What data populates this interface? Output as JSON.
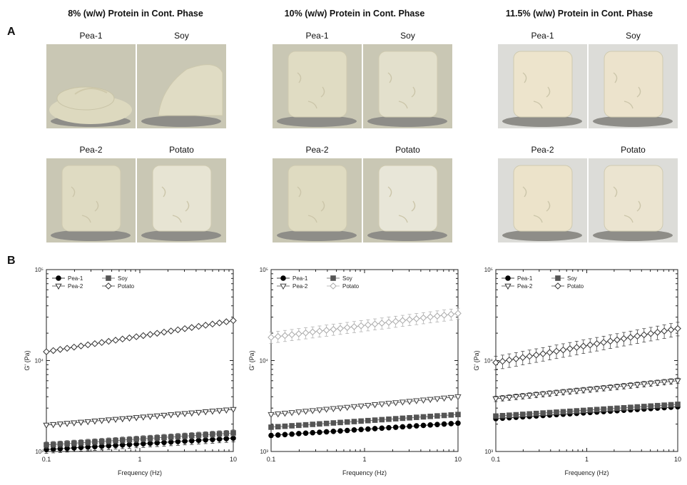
{
  "panel_labels": {
    "a": "A",
    "b": "B"
  },
  "columns": [
    {
      "title": "8% (w/w) Protein in Cont. Phase"
    },
    {
      "title": "10% (w/w) Protein in Cont. Phase"
    },
    {
      "title": "11.5% (w/w) Protein in Cont. Phase"
    }
  ],
  "photos": [
    [
      {
        "label": "Pea-1",
        "tone": "#ddd9bf",
        "shape": "slump"
      },
      {
        "label": "Soy",
        "tone": "#e0dcc4",
        "shape": "lean"
      },
      {
        "label": "Pea-2",
        "tone": "#dfdbc2",
        "shape": "column"
      },
      {
        "label": "Potato",
        "tone": "#e7e4d3",
        "shape": "column"
      }
    ],
    [
      {
        "label": "Pea-1",
        "tone": "#e0dcc3",
        "shape": "column"
      },
      {
        "label": "Soy",
        "tone": "#e3e0cc",
        "shape": "column"
      },
      {
        "label": "Pea-2",
        "tone": "#dfdbc1",
        "shape": "column"
      },
      {
        "label": "Potato",
        "tone": "#e8e6d8",
        "shape": "column"
      }
    ],
    [
      {
        "label": "Pea-1",
        "tone": "#ede4cc",
        "shape": "column"
      },
      {
        "label": "Soy",
        "tone": "#ece3cc",
        "shape": "column"
      },
      {
        "label": "Pea-2",
        "tone": "#ece3ca",
        "shape": "column"
      },
      {
        "label": "Potato",
        "tone": "#ebe4d0",
        "shape": "column"
      }
    ]
  ],
  "chart_data": [
    {
      "type": "line",
      "title": "",
      "xlabel": "Frequency (Hz)",
      "ylabel": "G' (Pa)",
      "xscale": "log",
      "yscale": "log",
      "xlim": [
        0.1,
        10
      ],
      "ylim": [
        1000,
        100000
      ],
      "x_tick_labels": [
        "0.1",
        "1",
        "10"
      ],
      "y_tick_labels": [
        "10³",
        "10⁴",
        "10⁵"
      ],
      "legend": "top-left",
      "series": [
        {
          "name": "Pea-1",
          "marker": "circle-filled",
          "color": "#000000",
          "start": 1050,
          "end": 1400,
          "err": 0.09
        },
        {
          "name": "Soy",
          "marker": "square-filled",
          "color": "#555555",
          "start": 1180,
          "end": 1600,
          "err": 0.08
        },
        {
          "name": "Pea-2",
          "marker": "triangle-down-open",
          "color": "#333333",
          "start": 1950,
          "end": 2900,
          "err": 0.02
        },
        {
          "name": "Potato",
          "marker": "diamond-open",
          "color": "#333333",
          "start": 12500,
          "end": 27500,
          "err": 0.04
        }
      ]
    },
    {
      "type": "line",
      "title": "",
      "xlabel": "Frequency (Hz)",
      "ylabel": "G' (Pa)",
      "xscale": "log",
      "yscale": "log",
      "xlim": [
        0.1,
        10
      ],
      "ylim": [
        1000,
        100000
      ],
      "x_tick_labels": [
        "0.1",
        "1",
        "10"
      ],
      "y_tick_labels": [
        "10³",
        "10⁴",
        "10⁵"
      ],
      "legend": "top-left",
      "series": [
        {
          "name": "Pea-1",
          "marker": "circle-filled",
          "color": "#000000",
          "start": 1500,
          "end": 2050,
          "err": 0.03
        },
        {
          "name": "Soy",
          "marker": "square-filled",
          "color": "#555555",
          "start": 1850,
          "end": 2550,
          "err": 0.03
        },
        {
          "name": "Pea-2",
          "marker": "triangle-down-open",
          "color": "#444444",
          "start": 2550,
          "end": 4000,
          "err": 0.03
        },
        {
          "name": "Potato",
          "marker": "diamond-open",
          "color": "#aaaaaa",
          "start": 18000,
          "end": 33000,
          "err": 0.14
        }
      ]
    },
    {
      "type": "line",
      "title": "",
      "xlabel": "Frequency (Hz)",
      "ylabel": "G' (Pa)",
      "xscale": "log",
      "yscale": "log",
      "xlim": [
        0.1,
        10
      ],
      "ylim": [
        1000,
        100000
      ],
      "x_tick_labels": [
        "0.1",
        "1",
        "10"
      ],
      "y_tick_labels": [
        "10³",
        "10⁴",
        "10⁵"
      ],
      "legend": "top-left",
      "series": [
        {
          "name": "Pea-1",
          "marker": "circle-filled",
          "color": "#000000",
          "start": 2300,
          "end": 3100,
          "err": 0.04
        },
        {
          "name": "Soy",
          "marker": "square-filled",
          "color": "#555555",
          "start": 2450,
          "end": 3300,
          "err": 0.05
        },
        {
          "name": "Pea-2",
          "marker": "triangle-down-open",
          "color": "#333333",
          "start": 3800,
          "end": 6000,
          "err": 0.07
        },
        {
          "name": "Potato",
          "marker": "diamond-open",
          "color": "#333333",
          "start": 9500,
          "end": 22500,
          "err": 0.17
        }
      ]
    }
  ]
}
